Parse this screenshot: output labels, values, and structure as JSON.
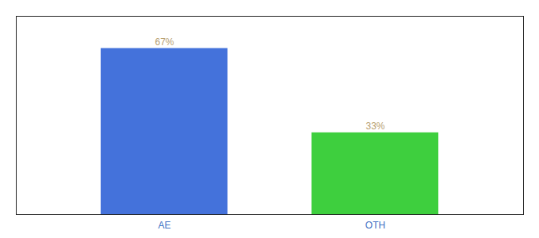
{
  "chart_data": {
    "type": "bar",
    "categories": [
      "AE",
      "OTH"
    ],
    "values": [
      67,
      33
    ],
    "colors": [
      "#4472db",
      "#3ecf3e"
    ],
    "ylim": [
      0,
      80
    ],
    "data_labels": true,
    "value_labels": [
      "67%",
      "33%"
    ],
    "tick_labels": "x"
  }
}
